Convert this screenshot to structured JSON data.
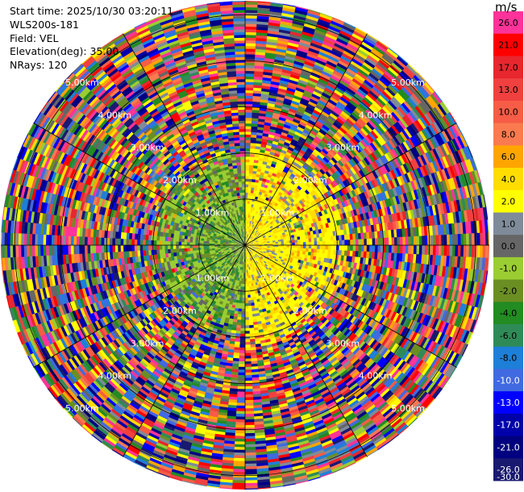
{
  "header": {
    "start_time": "Start time: 2025/10/30 03:20:11",
    "site": "WLS200s-181",
    "field": "Field: VEL",
    "elevation": "Elevation(deg): 35.00",
    "nrays": "NRays: 120"
  },
  "chart_data": {
    "type": "heatmap",
    "projection": "polar-ppi",
    "field": "VEL",
    "nrays": 120,
    "elevation_deg": 35.0,
    "range_km": [
      0,
      5.3
    ],
    "range_rings_km": [
      1,
      2,
      3,
      4,
      5
    ],
    "range_labels": [
      "1.00km",
      "2.00km",
      "3.00km",
      "4.00km",
      "5.00km"
    ],
    "colorbar": {
      "unit": "m/s",
      "tick_labels": [
        "26.0",
        "21.0",
        "17.0",
        "13.0",
        "10.0",
        "8.0",
        "6.0",
        "4.0",
        "2.0",
        "1.0",
        "0.0",
        "-1.0",
        "-2.0",
        "-4.0",
        "-6.0",
        "-8.0",
        "-10.0",
        "-13.0",
        "-17.0",
        "-21.0",
        "-26.0",
        "-30.0"
      ],
      "bins": [
        {
          "label": "26.0",
          "color": "#ff3399"
        },
        {
          "label": "21.0",
          "color": "#ff0000"
        },
        {
          "label": "17.0",
          "color": "#e8262e"
        },
        {
          "label": "13.0",
          "color": "#f0403f"
        },
        {
          "label": "10.0",
          "color": "#f65c46"
        },
        {
          "label": "8.0",
          "color": "#fb7a50"
        },
        {
          "label": "6.0",
          "color": "#ffa500"
        },
        {
          "label": "4.0",
          "color": "#ffdd00"
        },
        {
          "label": "2.0",
          "color": "#ffff00"
        },
        {
          "label": "1.0",
          "color": "#7f8b99"
        },
        {
          "label": "0.0",
          "color": "#666666"
        },
        {
          "label": "-1.0",
          "color": "#9acd32"
        },
        {
          "label": "-2.0",
          "color": "#6b8e23"
        },
        {
          "label": "-4.0",
          "color": "#228b22"
        },
        {
          "label": "-6.0",
          "color": "#2e8b57"
        },
        {
          "label": "-8.0",
          "color": "#1e7fd8"
        },
        {
          "label": "-10.0",
          "color": "#4169e1"
        },
        {
          "label": "-13.0",
          "color": "#0000ff"
        },
        {
          "label": "-17.0",
          "color": "#0000aa"
        },
        {
          "label": "-21.0",
          "color": "#000080"
        },
        {
          "label": "-26.0",
          "color": "#191970"
        }
      ]
    },
    "velocity_regions": [
      {
        "description_sector": "east",
        "r_km": [
          0,
          2.3
        ],
        "dominant_bins": [
          "2.0",
          "4.0"
        ]
      },
      {
        "description_sector": "west",
        "r_km": [
          0,
          2.1
        ],
        "dominant_bins": [
          "-1.0",
          "-2.0",
          "-4.0"
        ]
      },
      {
        "description_sector": "all",
        "r_km": [
          2.3,
          5.3
        ],
        "dominant_bins": [
          "mixed/aliased"
        ]
      }
    ],
    "grid": true
  }
}
